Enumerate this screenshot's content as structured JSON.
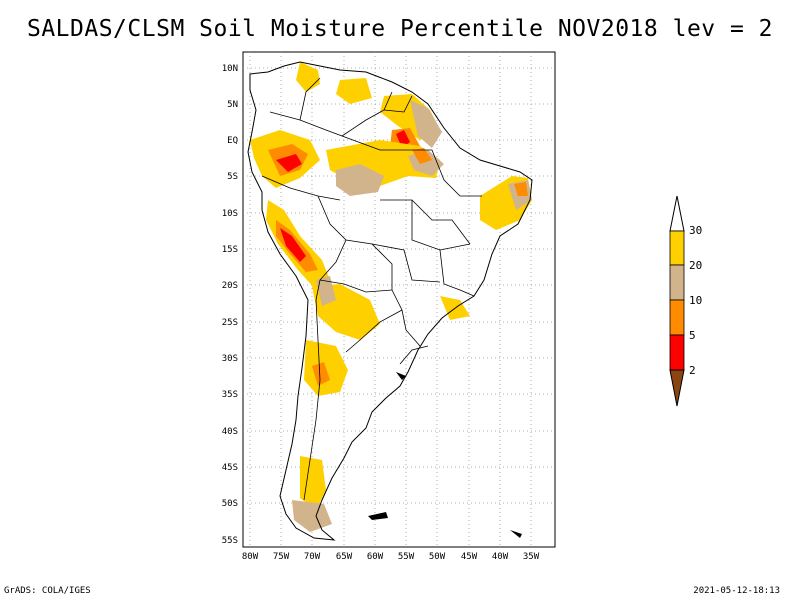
{
  "title": "SALDAS/CLSM Soil Moisture Percentile NOV2018 lev = 2",
  "footer": {
    "left": "GrADS: COLA/IGES",
    "right": "2021-05-12-18:13"
  },
  "lat_labels": [
    "10N",
    "5N",
    "EQ",
    "5S",
    "10S",
    "15S",
    "20S",
    "25S",
    "30S",
    "35S",
    "40S",
    "45S",
    "50S",
    "55S"
  ],
  "lon_labels": [
    "80W",
    "75W",
    "70W",
    "65W",
    "60W",
    "55W",
    "50W",
    "45W",
    "40W",
    "35W"
  ],
  "legend": {
    "top_label": "30",
    "bins": [
      {
        "label": "30",
        "color": "#ffd000"
      },
      {
        "label": "20",
        "color": "#d2b48c"
      },
      {
        "label": "10",
        "color": "#ff8c00"
      },
      {
        "label": "5",
        "color": "#ff0000"
      },
      {
        "label": "2",
        "color": "#8b4513"
      }
    ]
  },
  "colors": {
    "yellow": "#ffd000",
    "tan": "#d2b48c",
    "orange": "#ff8c00",
    "red": "#ff0000",
    "brown": "#8b4513",
    "background_ocean": "#ffffff",
    "borders": "#000000"
  }
}
